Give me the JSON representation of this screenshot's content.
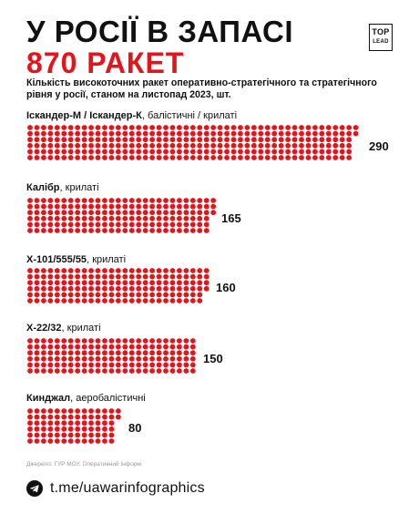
{
  "header": {
    "title_line1": "У РОСІЇ В ЗАПАСІ",
    "title_line2": "870 РАКЕТ",
    "logo_top": "TOP",
    "logo_bottom": "LEAD",
    "subtitle": "Кількість високоточних ракет оперативно-стратегічного та стратегічного рівня у росії, станом на листопад 2023, шт."
  },
  "colors": {
    "accent": "#e4141b",
    "text": "#111111"
  },
  "chart_data": {
    "type": "bar",
    "orientation": "horizontal",
    "mark": "dots",
    "categories": [
      "Іскандер-М / Іскандер-К",
      "Калібр",
      "Х-101/555/55",
      "Х-22/32",
      "Кинджал"
    ],
    "category_notes": [
      "балістичні / крилаті",
      "крилаті",
      "крилаті",
      "крилаті",
      "аеробалістичні"
    ],
    "values": [
      290,
      165,
      160,
      150,
      80
    ],
    "value_labels": [
      "290",
      "165",
      "160",
      "150",
      "80"
    ],
    "dots_per_column": 6
  },
  "source": "Джерело: ГУР МОУ, Оперативний Інформ.",
  "footer": {
    "icon": "telegram-icon",
    "text": "t.me/uawarinfographics"
  }
}
